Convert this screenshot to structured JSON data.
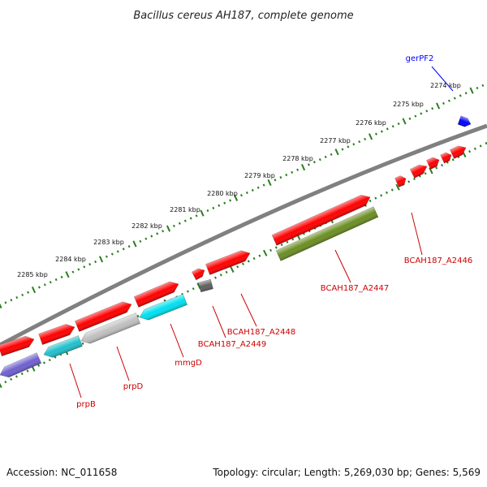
{
  "title": "Bacillus cereus AH187, complete genome",
  "footer": {
    "accession": "Accession: NC_011658",
    "summary": "Topology: circular; Length: 5,269,030 bp; Genes: 5,569"
  },
  "colors": {
    "backbone": "#808080",
    "ruler": "#2a7d1e",
    "gene_red": "#ff0000",
    "gene_blue": "#0000ff",
    "gene_cyan": "#00e0f0",
    "gene_teal": "#20c0cc",
    "gene_silver": "#c0c0c0",
    "gene_olive": "#6b8e23",
    "gene_slate": "#7060d0",
    "gene_gray": "#606060"
  },
  "ruler_labels": [
    "2274 kbp",
    "2275 kbp",
    "2276 kbp",
    "2277 kbp",
    "2278 kbp",
    "2279 kbp",
    "2280 kbp",
    "2281 kbp",
    "2282 kbp",
    "2283 kbp",
    "2284 kbp",
    "2285 kbp"
  ],
  "gene_labels": [
    {
      "name": "gerPF2",
      "color": "#0000ff"
    },
    {
      "name": "BCAH187_A2446",
      "color": "#cc0000"
    },
    {
      "name": "BCAH187_A2447",
      "color": "#cc0000"
    },
    {
      "name": "BCAH187_A2448",
      "color": "#cc0000"
    },
    {
      "name": "BCAH187_A2449",
      "color": "#cc0000"
    },
    {
      "name": "mmgD",
      "color": "#cc0000"
    },
    {
      "name": "prpD",
      "color": "#cc0000"
    },
    {
      "name": "prpB",
      "color": "#cc0000"
    }
  ]
}
